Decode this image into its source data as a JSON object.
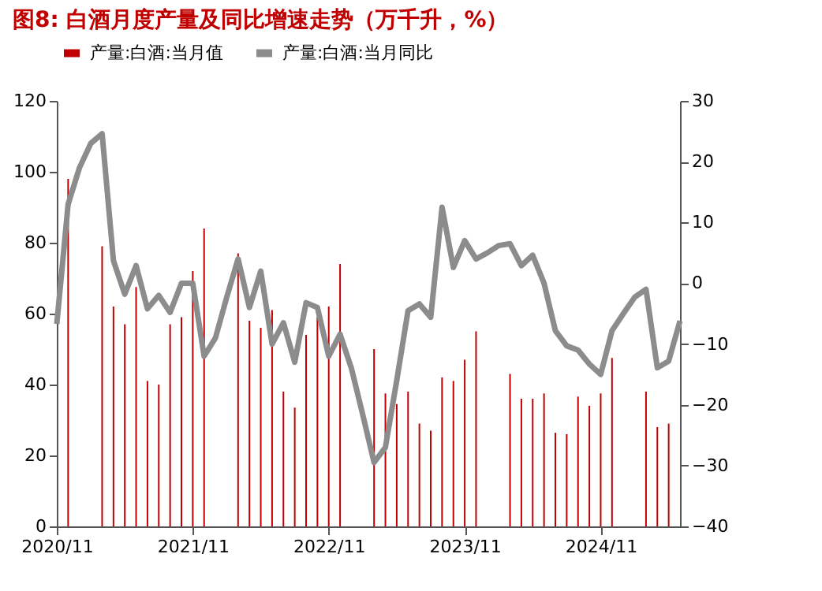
{
  "chart_data": {
    "type": "bar",
    "title": "图8:   白酒月度产量及同比增速走势（万千升，%）",
    "categories": [
      "2020/11",
      null,
      null,
      null,
      null,
      null,
      null,
      null,
      null,
      null,
      null,
      null,
      "2021/11",
      null,
      null,
      null,
      null,
      null,
      null,
      null,
      null,
      null,
      null,
      null,
      "2022/11",
      null,
      null,
      null,
      null,
      null,
      null,
      null,
      null,
      null,
      null,
      null,
      "2023/11",
      null,
      null,
      null,
      null,
      null,
      null,
      null,
      null,
      null,
      null,
      null,
      "2024/11",
      null,
      null,
      null,
      null,
      null,
      null,
      null
    ],
    "series": [
      {
        "name": "产量:白酒:当月值",
        "color": "#c00000",
        "values": [
          null,
          98,
          null,
          null,
          79,
          62,
          57,
          67.5,
          41,
          40,
          57,
          59,
          72,
          84,
          null,
          null,
          77,
          58,
          56,
          61,
          38,
          33.5,
          54,
          59,
          62,
          74,
          null,
          null,
          50,
          37.5,
          34.5,
          38,
          29,
          27,
          42,
          41,
          47,
          55,
          null,
          null,
          43,
          36,
          36,
          37.5,
          26.4,
          26,
          36.6,
          34,
          37.5,
          47.5,
          null,
          null,
          38,
          28,
          29,
          null
        ]
      },
      {
        "name": "产量:白酒:当月同比",
        "type": "line",
        "axis": "y2",
        "color": "#8c8c8c",
        "values": [
          -6.7,
          13,
          19,
          23,
          24.6,
          3.7,
          -1.8,
          2.9,
          -4.2,
          -2,
          -4.8,
          0,
          0,
          -12,
          -9,
          -2.3,
          4,
          -4,
          2,
          -10,
          -6.5,
          -13,
          -3.2,
          -4,
          -12,
          -8.4,
          -14,
          -21.6,
          -29.5,
          -27,
          -16,
          -4.5,
          -3.4,
          -5.6,
          12.5,
          2.6,
          7,
          4,
          5,
          6.2,
          6.5,
          2.9,
          4.6,
          0,
          -7.8,
          -10.3,
          -11,
          -13.3,
          -15,
          -7.8,
          -5,
          -2.3,
          -1,
          -13.9,
          -12.8,
          -6.2
        ]
      }
    ],
    "ylim": [
      0,
      120
    ],
    "yticks": [
      0,
      20,
      40,
      60,
      80,
      100,
      120
    ],
    "y2lim": [
      -40,
      30
    ],
    "y2ticks": [
      -40,
      -30,
      -20,
      -10,
      0,
      10,
      20,
      30
    ],
    "legend": "top",
    "grid": false
  }
}
